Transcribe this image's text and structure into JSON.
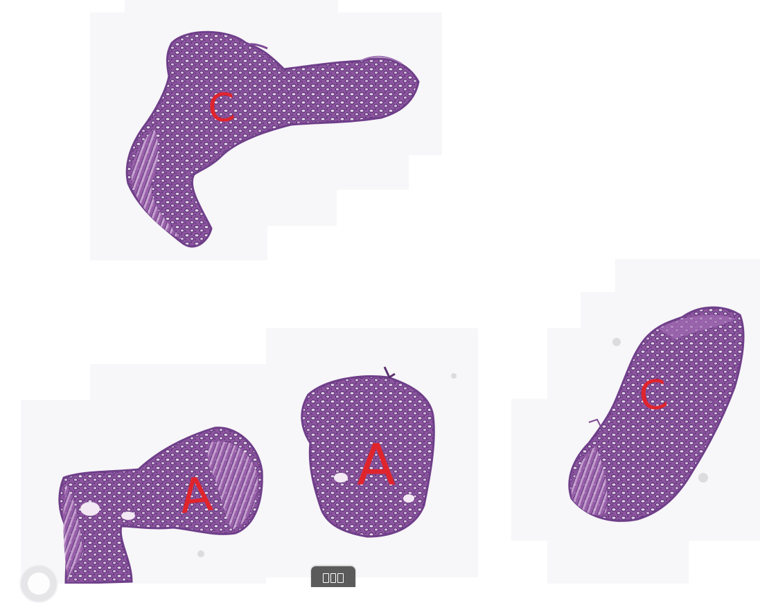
{
  "viewer": {
    "background": "#ffffff",
    "stain_primary": "#8a4f9e",
    "stain_dark": "#4a2a6e",
    "stain_light": "#c7a3cf",
    "annotation_color": "#e0242c"
  },
  "annotations": [
    {
      "label": "C"
    },
    {
      "label": "A"
    },
    {
      "label": "A"
    },
    {
      "label": "C"
    }
  ],
  "controls": {
    "filmstrip_icon": "filmstrip-icon",
    "corner_icon": "navigator-circle-icon"
  }
}
